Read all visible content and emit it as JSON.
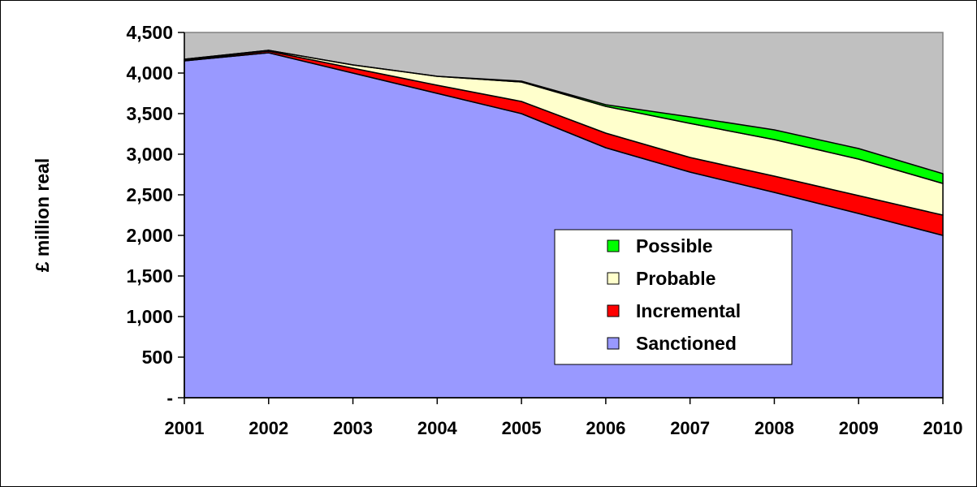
{
  "chart_data": {
    "type": "area",
    "stacked": true,
    "title": "",
    "xlabel": "",
    "ylabel": "£ million real",
    "x": [
      "2001",
      "2002",
      "2003",
      "2004",
      "2005",
      "2006",
      "2007",
      "2008",
      "2009",
      "2010"
    ],
    "ylim": [
      0,
      4500
    ],
    "y_ticks": [
      0,
      500,
      1000,
      1500,
      2000,
      2500,
      3000,
      3500,
      4000,
      4500
    ],
    "y_tick_labels": [
      "-",
      "500",
      "1,000",
      "1,500",
      "2,000",
      "2,500",
      "3,000",
      "3,500",
      "4,000",
      "4,500"
    ],
    "grid": false,
    "plot_background": "#c0c0c0",
    "legend_position": "center-right",
    "series": [
      {
        "name": "Sanctioned",
        "color": "#9999ff",
        "values": [
          4150,
          4250,
          4000,
          3750,
          3500,
          3080,
          2780,
          2530,
          2270,
          2000
        ]
      },
      {
        "name": "Incremental",
        "color": "#ff0000",
        "values": [
          10,
          20,
          60,
          100,
          150,
          180,
          180,
          200,
          220,
          250
        ]
      },
      {
        "name": "Probable",
        "color": "#ffffcc",
        "values": [
          10,
          10,
          40,
          110,
          240,
          330,
          420,
          450,
          450,
          390
        ]
      },
      {
        "name": "Possible",
        "color": "#00ff00",
        "values": [
          0,
          0,
          0,
          0,
          10,
          20,
          80,
          120,
          130,
          120
        ]
      }
    ],
    "legend_order": [
      "Possible",
      "Probable",
      "Incremental",
      "Sanctioned"
    ]
  }
}
